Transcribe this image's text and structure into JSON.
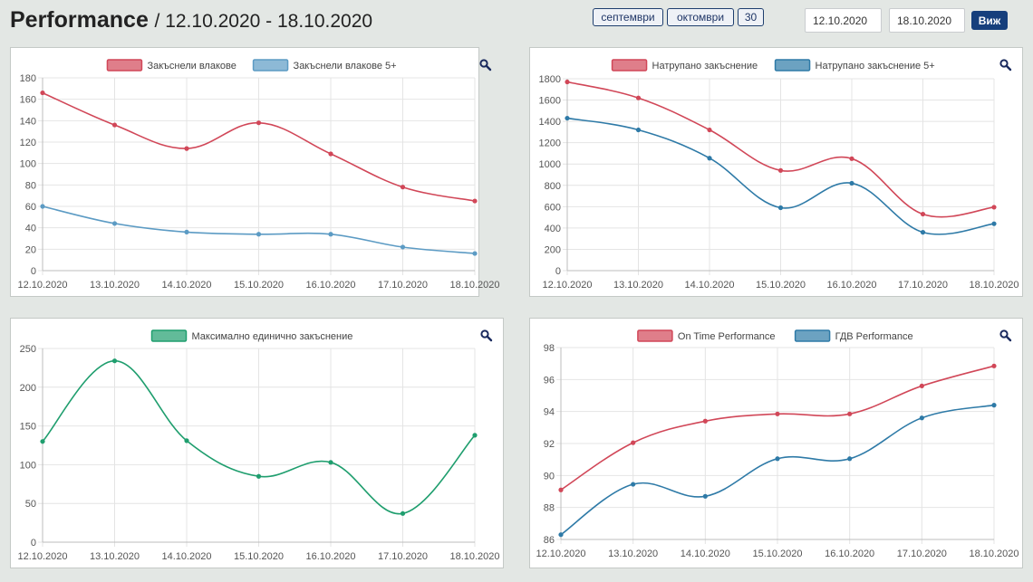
{
  "header": {
    "title": "Performance",
    "subtitle": "/ 12.10.2020 - 18.10.2020",
    "buttons": [
      "септември",
      "октомври",
      "30"
    ],
    "date_from": "12.10.2020",
    "date_to": "18.10.2020",
    "view_label": "Виж"
  },
  "icons": {
    "zoom": "search-icon"
  },
  "colors": {
    "red": "#d14758",
    "blue": "#2e7aa7",
    "lightblue": "#5c9bc4",
    "green": "#1f9e6e"
  },
  "chart_data": [
    {
      "type": "line",
      "categories": [
        "12.10.2020",
        "13.10.2020",
        "14.10.2020",
        "15.10.2020",
        "16.10.2020",
        "17.10.2020",
        "18.10.2020"
      ],
      "ylim": [
        0,
        180
      ],
      "yticks": [
        0,
        20,
        40,
        60,
        80,
        100,
        120,
        140,
        160,
        180
      ],
      "legend_position": "top",
      "grid": true,
      "series": [
        {
          "name": "Закъснели влакове",
          "color": "#d14758",
          "values": [
            166,
            136,
            114,
            138,
            109,
            78,
            65
          ]
        },
        {
          "name": "Закъснели влакове 5+",
          "color": "#5c9bc4",
          "values": [
            60,
            44,
            36,
            34,
            34,
            22,
            16
          ]
        }
      ]
    },
    {
      "type": "line",
      "categories": [
        "12.10.2020",
        "13.10.2020",
        "14.10.2020",
        "15.10.2020",
        "16.10.2020",
        "17.10.2020",
        "18.10.2020"
      ],
      "ylim": [
        0,
        1800
      ],
      "yticks": [
        0,
        200,
        400,
        600,
        800,
        1000,
        1200,
        1400,
        1600,
        1800
      ],
      "legend_position": "top",
      "grid": true,
      "series": [
        {
          "name": "Натрупано закъснение",
          "color": "#d14758",
          "values": [
            1770,
            1620,
            1320,
            940,
            1050,
            530,
            595
          ]
        },
        {
          "name": "Натрупано закъснение 5+",
          "color": "#2e7aa7",
          "values": [
            1430,
            1320,
            1055,
            590,
            820,
            360,
            440
          ]
        }
      ]
    },
    {
      "type": "line",
      "categories": [
        "12.10.2020",
        "13.10.2020",
        "14.10.2020",
        "15.10.2020",
        "16.10.2020",
        "17.10.2020",
        "18.10.2020"
      ],
      "ylim": [
        0,
        250
      ],
      "yticks": [
        0,
        50,
        100,
        150,
        200,
        250
      ],
      "legend_position": "top",
      "grid": true,
      "series": [
        {
          "name": "Максимално единично закъснение",
          "color": "#1f9e6e",
          "values": [
            130,
            234,
            131,
            85,
            103,
            37,
            138
          ]
        }
      ]
    },
    {
      "type": "line",
      "categories": [
        "12.10.2020",
        "13.10.2020",
        "14.10.2020",
        "15.10.2020",
        "16.10.2020",
        "17.10.2020",
        "18.10.2020"
      ],
      "ylim": [
        86,
        98
      ],
      "yticks": [
        86,
        88,
        90,
        92,
        94,
        96,
        98
      ],
      "legend_position": "top",
      "grid": true,
      "series": [
        {
          "name": "On Time Performance",
          "color": "#d14758",
          "values": [
            89.1,
            92.05,
            93.4,
            93.85,
            93.85,
            95.6,
            96.85
          ]
        },
        {
          "name": "ГДВ Performance",
          "color": "#2e7aa7",
          "values": [
            86.3,
            89.45,
            88.7,
            91.05,
            91.05,
            93.6,
            94.4
          ]
        }
      ]
    }
  ]
}
